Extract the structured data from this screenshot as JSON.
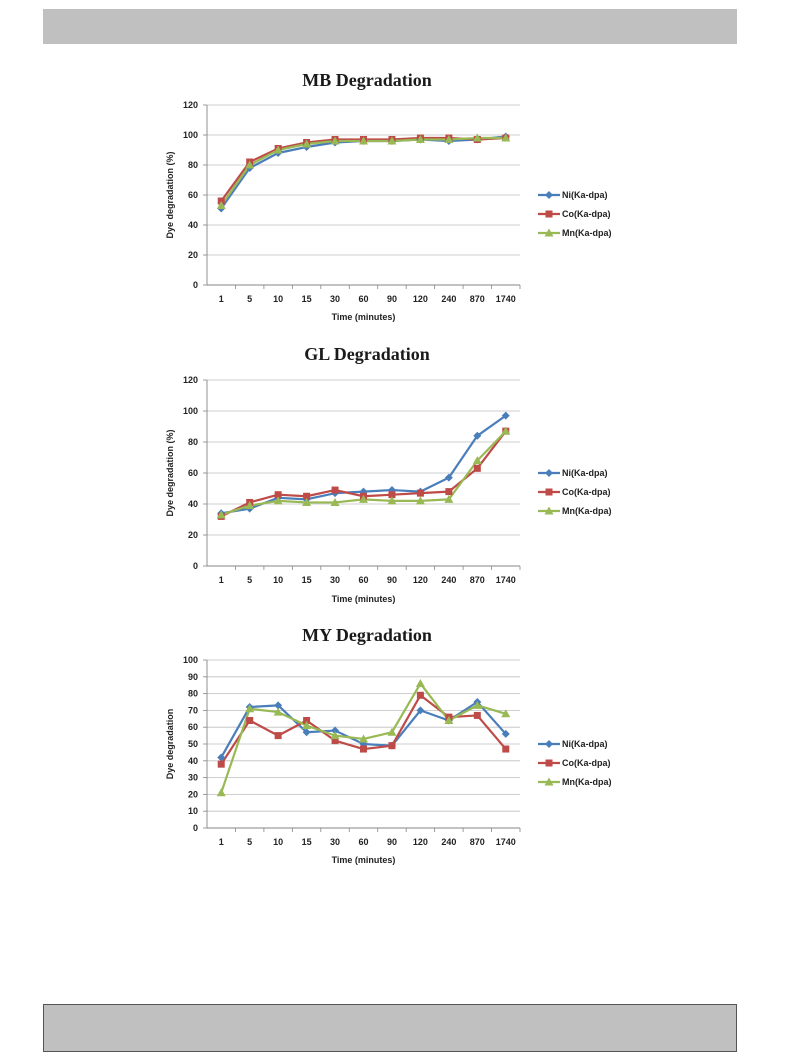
{
  "page": {
    "header_bar_color": "#c0c0c0",
    "footer_bar_color": "#c0c0c0"
  },
  "series_colors": {
    "Ni(Ka-dpa)": "#4a7ebb",
    "Co(Ka-dpa)": "#be4b48",
    "Mn(Ka-dpa)": "#98b954"
  },
  "chart_data": [
    {
      "type": "line",
      "title": "MB Degradation",
      "xlabel": "Time (minutes)",
      "ylabel": "Dye degradation (%)",
      "categories": [
        "1",
        "5",
        "10",
        "15",
        "30",
        "60",
        "90",
        "120",
        "240",
        "870",
        "1740"
      ],
      "ylim": [
        0,
        120
      ],
      "yticks": [
        0,
        20,
        40,
        60,
        80,
        100,
        120
      ],
      "grid": true,
      "legend": "right",
      "series": [
        {
          "name": "Ni(Ka-dpa)",
          "marker": "diamond",
          "values": [
            51,
            78,
            88,
            92,
            95,
            96,
            96,
            97,
            96,
            97,
            99
          ]
        },
        {
          "name": "Co(Ka-dpa)",
          "marker": "square",
          "values": [
            56,
            82,
            91,
            95,
            97,
            97,
            97,
            98,
            98,
            97,
            98
          ]
        },
        {
          "name": "Mn(Ka-dpa)",
          "marker": "triangle",
          "values": [
            53,
            80,
            90,
            94,
            96,
            96,
            96,
            97,
            97,
            98,
            98
          ]
        }
      ]
    },
    {
      "type": "line",
      "title": "GL Degradation",
      "xlabel": "Time (minutes)",
      "ylabel": "Dye degradation (%)",
      "categories": [
        "1",
        "5",
        "10",
        "15",
        "30",
        "60",
        "90",
        "120",
        "240",
        "870",
        "1740"
      ],
      "ylim": [
        0,
        120
      ],
      "yticks": [
        0,
        20,
        40,
        60,
        80,
        100,
        120
      ],
      "grid": true,
      "legend": "right",
      "series": [
        {
          "name": "Ni(Ka-dpa)",
          "marker": "diamond",
          "values": [
            34,
            37,
            44,
            43,
            47,
            48,
            49,
            48,
            57,
            84,
            97
          ]
        },
        {
          "name": "Co(Ka-dpa)",
          "marker": "square",
          "values": [
            32,
            41,
            46,
            45,
            49,
            45,
            46,
            47,
            48,
            63,
            87
          ]
        },
        {
          "name": "Mn(Ka-dpa)",
          "marker": "triangle",
          "values": [
            33,
            39,
            42,
            41,
            41,
            43,
            42,
            42,
            43,
            68,
            87
          ]
        }
      ]
    },
    {
      "type": "line",
      "title": "MY Degradation",
      "xlabel": "Time (minutes)",
      "ylabel": "Dye degradation",
      "categories": [
        "1",
        "5",
        "10",
        "15",
        "30",
        "60",
        "90",
        "120",
        "240",
        "870",
        "1740"
      ],
      "ylim": [
        0,
        100
      ],
      "yticks": [
        0,
        10,
        20,
        30,
        40,
        50,
        60,
        70,
        80,
        90,
        100
      ],
      "grid": true,
      "legend": "right",
      "series": [
        {
          "name": "Ni(Ka-dpa)",
          "marker": "diamond",
          "values": [
            42,
            72,
            73,
            57,
            58,
            50,
            49,
            70,
            64,
            75,
            56
          ]
        },
        {
          "name": "Co(Ka-dpa)",
          "marker": "square",
          "values": [
            38,
            64,
            55,
            64,
            52,
            47,
            49,
            79,
            66,
            67,
            47
          ]
        },
        {
          "name": "Mn(Ka-dpa)",
          "marker": "triangle",
          "values": [
            21,
            71,
            69,
            61,
            55,
            53,
            57,
            86,
            64,
            73,
            68
          ]
        }
      ]
    }
  ]
}
